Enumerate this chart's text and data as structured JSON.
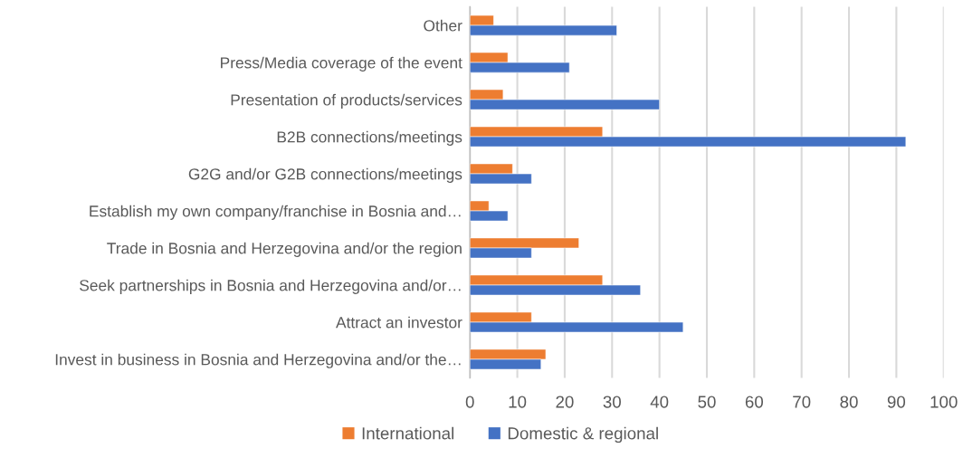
{
  "chart_data": {
    "type": "bar",
    "orientation": "horizontal",
    "categories": [
      "Other",
      "Press/Media coverage of the event",
      "Presentation of products/services",
      "B2B connections/meetings",
      "G2G and/or G2B connections/meetings",
      "Establish my own company/franchise in Bosnia and…",
      "Trade in Bosnia and Herzegovina and/or the region",
      "Seek partnerships in Bosnia and Herzegovina and/or…",
      "Attract an investor",
      "Invest in business in Bosnia and Herzegovina and/or the…"
    ],
    "series": [
      {
        "name": "International",
        "color": "#ed7d31",
        "values": [
          5,
          8,
          7,
          28,
          9,
          4,
          23,
          28,
          13,
          16
        ]
      },
      {
        "name": "Domestic & regional",
        "color": "#4472c4",
        "values": [
          31,
          21,
          40,
          92,
          13,
          8,
          13,
          36,
          45,
          15
        ]
      }
    ],
    "xlim": [
      0,
      100
    ],
    "xticks": [
      0,
      10,
      20,
      30,
      40,
      50,
      60,
      70,
      80,
      90,
      100
    ],
    "grid": "x",
    "legend": "bottom"
  }
}
